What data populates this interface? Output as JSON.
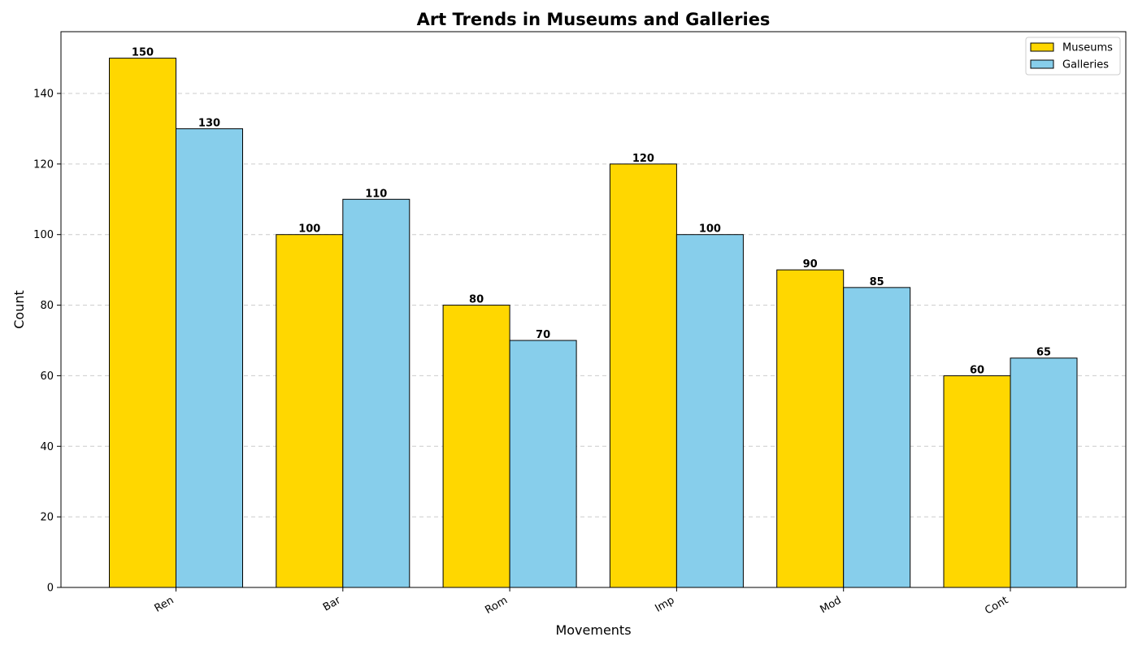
{
  "chart_data": {
    "type": "bar",
    "title": "Art Trends in Museums and Galleries",
    "xlabel": "Movements",
    "ylabel": "Count",
    "categories": [
      "Ren",
      "Bar",
      "Rom",
      "Imp",
      "Mod",
      "Cont"
    ],
    "series": [
      {
        "name": "Museums",
        "values": [
          150,
          100,
          80,
          120,
          90,
          60
        ],
        "color": "#FFD700"
      },
      {
        "name": "Galleries",
        "values": [
          130,
          110,
          70,
          100,
          85,
          65
        ],
        "color": "#87CEEB"
      }
    ],
    "ylim": [
      0,
      157.5
    ],
    "yticks": [
      0,
      20,
      40,
      60,
      80,
      100,
      120,
      140
    ],
    "grid": "y-axis dashed",
    "legend_position": "top-right"
  }
}
